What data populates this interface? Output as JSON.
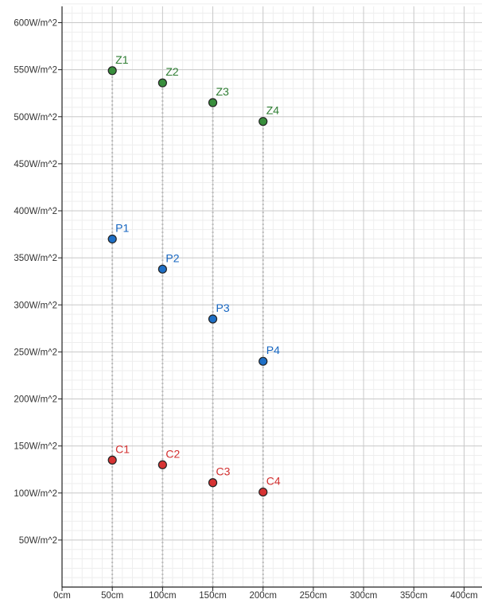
{
  "chart_data": {
    "type": "scatter",
    "title": "",
    "xlabel": "",
    "ylabel": "",
    "xlim": [
      0,
      420
    ],
    "ylim": [
      0,
      620
    ],
    "x_ticks": [
      {
        "value": 0,
        "label": "0cm"
      },
      {
        "value": 50,
        "label": "50cm"
      },
      {
        "value": 100,
        "label": "100cm"
      },
      {
        "value": 150,
        "label": "150cm"
      },
      {
        "value": 200,
        "label": "200cm"
      },
      {
        "value": 250,
        "label": "250cm"
      },
      {
        "value": 300,
        "label": "300cm"
      },
      {
        "value": 350,
        "label": "350cm"
      },
      {
        "value": 400,
        "label": "400cm"
      }
    ],
    "y_ticks": [
      {
        "value": 50,
        "label": "50W/m^2"
      },
      {
        "value": 100,
        "label": "100W/m^2"
      },
      {
        "value": 150,
        "label": "150W/m^2"
      },
      {
        "value": 200,
        "label": "200W/m^2"
      },
      {
        "value": 250,
        "label": "250W/m^2"
      },
      {
        "value": 300,
        "label": "300W/m^2"
      },
      {
        "value": 350,
        "label": "350W/m^2"
      },
      {
        "value": 400,
        "label": "400W/m^2"
      },
      {
        "value": 450,
        "label": "450W/m^2"
      },
      {
        "value": 500,
        "label": "500W/m^2"
      },
      {
        "value": 550,
        "label": "550W/m^2"
      },
      {
        "value": 600,
        "label": "600W/m^2"
      }
    ],
    "grid": true,
    "series": [
      {
        "color": "#2e7d32",
        "fill": "#388e3c",
        "points": [
          {
            "label": "Z1",
            "x": 50,
            "y": 549
          },
          {
            "label": "Z2",
            "x": 100,
            "y": 536
          },
          {
            "label": "Z3",
            "x": 150,
            "y": 515
          },
          {
            "label": "Z4",
            "x": 200,
            "y": 495
          }
        ]
      },
      {
        "color": "#1565c0",
        "fill": "#1e6fc6",
        "points": [
          {
            "label": "P1",
            "x": 50,
            "y": 370
          },
          {
            "label": "P2",
            "x": 100,
            "y": 338
          },
          {
            "label": "P3",
            "x": 150,
            "y": 285
          },
          {
            "label": "P4",
            "x": 200,
            "y": 240
          }
        ]
      },
      {
        "color": "#d32f2f",
        "fill": "#d63333",
        "points": [
          {
            "label": "C1",
            "x": 50,
            "y": 135
          },
          {
            "label": "C2",
            "x": 100,
            "y": 130
          },
          {
            "label": "C3",
            "x": 150,
            "y": 111
          },
          {
            "label": "C4",
            "x": 200,
            "y": 101
          }
        ]
      }
    ],
    "vertical_guides_at_x": [
      50,
      100,
      150,
      200
    ]
  }
}
